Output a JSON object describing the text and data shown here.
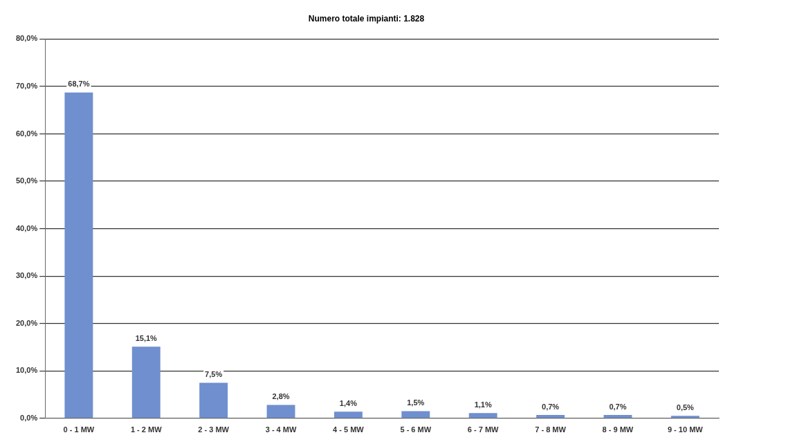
{
  "chart_data": {
    "type": "bar",
    "title": "Numero totale impianti: 1.828",
    "categories": [
      "0 - 1 MW",
      "1 - 2 MW",
      "2 - 3 MW",
      "3 - 4 MW",
      "4 - 5 MW",
      "5 - 6 MW",
      "6 - 7 MW",
      "7 - 8 MW",
      "8 - 9 MW",
      "9 - 10 MW"
    ],
    "values": [
      68.7,
      15.1,
      7.5,
      2.8,
      1.4,
      1.5,
      1.1,
      0.7,
      0.7,
      0.5
    ],
    "value_labels": [
      "68,7%",
      "15,1%",
      "7,5%",
      "2,8%",
      "1,4%",
      "1,5%",
      "1,1%",
      "0,7%",
      "0,7%",
      "0,5%"
    ],
    "color": "#6f8fcf",
    "ylim": [
      0,
      80
    ],
    "yticks": [
      {
        "value": 0,
        "label": "0,0%"
      },
      {
        "value": 10,
        "label": "10,0%"
      },
      {
        "value": 20,
        "label": "20,0%"
      },
      {
        "value": 30,
        "label": "30,0%"
      },
      {
        "value": 40,
        "label": "40,0%"
      },
      {
        "value": 50,
        "label": "50,0%"
      },
      {
        "value": 60,
        "label": "60,0%"
      },
      {
        "value": 70,
        "label": "70,0%"
      },
      {
        "value": 80,
        "label": "80,0%"
      }
    ],
    "grid": "y",
    "legend": false
  }
}
